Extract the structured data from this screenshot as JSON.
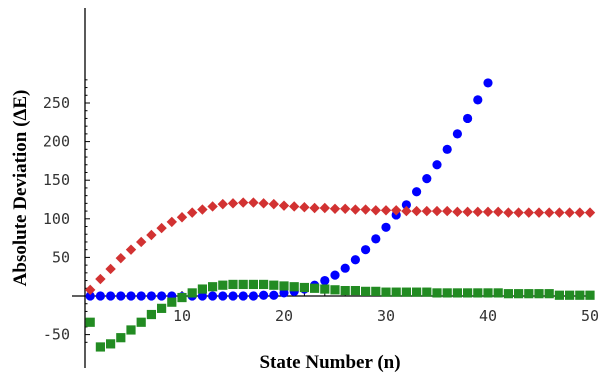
{
  "chart_data": {
    "type": "scatter",
    "title": "",
    "xlabel": "State Number (n)",
    "ylabel": "Absolute Deviation (ΔE)",
    "xlim": [
      0,
      50
    ],
    "ylim": [
      -70,
      290
    ],
    "x_ticks": [
      10,
      20,
      30,
      40,
      50
    ],
    "y_ticks": [
      -50,
      50,
      100,
      150,
      200,
      250
    ],
    "grid": false,
    "legend": "none",
    "series": [
      {
        "marker": "circle",
        "color": "#0000ff",
        "x": [
          1,
          2,
          3,
          4,
          5,
          6,
          7,
          8,
          9,
          10,
          11,
          12,
          13,
          14,
          15,
          16,
          17,
          18,
          19,
          20,
          21,
          22,
          23,
          24,
          25,
          26,
          27,
          28,
          29,
          30,
          31,
          32,
          33,
          34,
          35,
          36,
          37,
          38,
          39,
          40
        ],
        "y": [
          0,
          0,
          0,
          0,
          0,
          0,
          0,
          0,
          0,
          -1,
          0,
          0,
          0,
          0,
          0,
          0,
          0,
          1,
          1,
          4,
          6,
          9,
          14,
          20,
          27,
          36,
          47,
          60,
          74,
          89,
          105,
          118,
          135,
          152,
          170,
          190,
          210,
          230,
          254,
          276
        ]
      },
      {
        "marker": "diamond",
        "color": "#d23232",
        "x": [
          1,
          2,
          3,
          4,
          5,
          6,
          7,
          8,
          9,
          10,
          11,
          12,
          13,
          14,
          15,
          16,
          17,
          18,
          19,
          20,
          21,
          22,
          23,
          24,
          25,
          26,
          27,
          28,
          29,
          30,
          31,
          32,
          33,
          34,
          35,
          36,
          37,
          38,
          39,
          40,
          41,
          42,
          43,
          44,
          45,
          46,
          47,
          48,
          49,
          50
        ],
        "y": [
          8,
          22,
          35,
          49,
          60,
          70,
          79,
          88,
          96,
          102,
          108,
          112,
          116,
          119,
          120,
          121,
          121,
          120,
          119,
          117,
          116,
          115,
          114,
          114,
          113,
          113,
          112,
          112,
          111,
          111,
          111,
          110,
          110,
          110,
          110,
          110,
          109,
          109,
          109,
          109,
          109,
          108,
          108,
          108,
          108,
          108,
          108,
          108,
          108,
          108
        ]
      },
      {
        "marker": "square",
        "color": "#228b22",
        "x": [
          1,
          2,
          3,
          4,
          5,
          6,
          7,
          8,
          9,
          10,
          11,
          12,
          13,
          14,
          15,
          16,
          17,
          18,
          19,
          20,
          21,
          22,
          23,
          24,
          25,
          26,
          27,
          28,
          29,
          30,
          31,
          32,
          33,
          34,
          35,
          36,
          37,
          38,
          39,
          40,
          41,
          42,
          43,
          44,
          45,
          46,
          47,
          48,
          49,
          50
        ],
        "y": [
          -34,
          -66,
          -62,
          -54,
          -44,
          -34,
          -24,
          -16,
          -8,
          -2,
          4,
          9,
          12,
          14,
          15,
          15,
          15,
          15,
          14,
          13,
          12,
          11,
          10,
          9,
          8,
          7,
          7,
          6,
          6,
          5,
          5,
          5,
          5,
          5,
          4,
          4,
          4,
          4,
          4,
          4,
          4,
          3,
          3,
          3,
          3,
          3,
          1,
          1,
          1,
          1
        ]
      }
    ]
  }
}
